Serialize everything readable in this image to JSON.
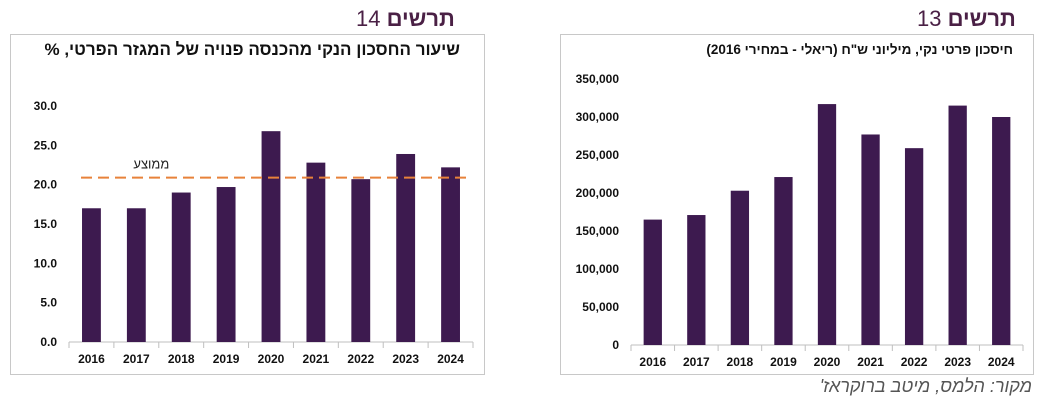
{
  "figures": {
    "left": {
      "word": "תרשים",
      "number": "14"
    },
    "right": {
      "word": "תרשים",
      "number": "13"
    }
  },
  "source": "מקור: הלמס, מיטב ברוקראז'",
  "colors": {
    "bar": "#3d1a4f",
    "average_line": "#e8823a",
    "title_accent": "#4a2045"
  },
  "chart_data": [
    {
      "type": "bar",
      "title": "שיעור החסכון הנקי מהכנסה פנויה של המגזר הפרטי, %",
      "categories": [
        "2016",
        "2017",
        "2018",
        "2019",
        "2020",
        "2021",
        "2022",
        "2023",
        "2024"
      ],
      "values": [
        17.0,
        17.0,
        19.0,
        19.7,
        26.8,
        22.8,
        20.7,
        23.9,
        22.2
      ],
      "ylim": [
        0,
        30
      ],
      "yticks": [
        "0.0",
        "5.0",
        "10.0",
        "15.0",
        "20.0",
        "25.0",
        "30.0"
      ],
      "reference_line": {
        "label": "ממוצע",
        "value": 20.9
      },
      "grid": false
    },
    {
      "type": "bar",
      "title": "חיסכון פרטי נקי, מיליוני ש\"ח (ריאלי - במחירי 2016)",
      "categories": [
        "2016",
        "2017",
        "2018",
        "2019",
        "2020",
        "2021",
        "2022",
        "2023",
        "2024"
      ],
      "values": [
        165000,
        171000,
        203000,
        221000,
        317000,
        277000,
        259000,
        315000,
        300000
      ],
      "ylim": [
        0,
        350000
      ],
      "yticks": [
        "0",
        "50,000",
        "100,000",
        "150,000",
        "200,000",
        "250,000",
        "300,000",
        "350,000"
      ],
      "grid": false
    }
  ]
}
